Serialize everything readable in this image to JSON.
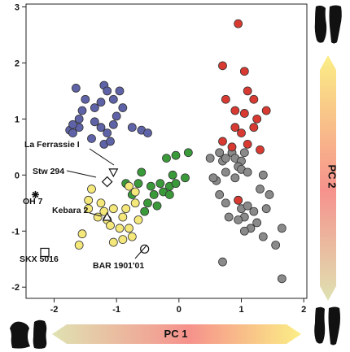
{
  "chart_data": {
    "type": "scatter",
    "xlabel": "PC 1",
    "ylabel": "PC 2",
    "xlim": [
      -2.45,
      2.05
    ],
    "ylim": [
      -2.2,
      3.05
    ],
    "xticks": [
      -2,
      -1,
      0,
      1,
      2
    ],
    "yticks": [
      -2,
      -1,
      0,
      1,
      2,
      3
    ],
    "grid": false,
    "colors": {
      "blue": "#5e62a6",
      "green": "#3a9a3a",
      "yellow": "#f5e87a",
      "gray": "#8a8a8a",
      "red": "#d83a32"
    },
    "series": [
      {
        "color_key": "blue",
        "points": [
          [
            -1.65,
            1.55
          ],
          [
            -1.5,
            1.35
          ],
          [
            -1.55,
            1.15
          ],
          [
            -1.35,
            1.2
          ],
          [
            -1.2,
            1.6
          ],
          [
            -1.15,
            1.5
          ],
          [
            -1.25,
            1.3
          ],
          [
            -1.05,
            1.35
          ],
          [
            -1.0,
            1.05
          ],
          [
            -0.95,
            1.5
          ],
          [
            -0.9,
            1.2
          ],
          [
            -1.35,
            0.95
          ],
          [
            -1.6,
            0.85
          ],
          [
            -1.75,
            0.8
          ],
          [
            -1.7,
            0.9
          ],
          [
            -1.6,
            1.0
          ],
          [
            -1.25,
            0.85
          ],
          [
            -1.15,
            0.75
          ],
          [
            -1.05,
            0.9
          ],
          [
            -0.75,
            0.85
          ],
          [
            -0.6,
            0.8
          ],
          [
            -0.5,
            0.75
          ],
          [
            -1.4,
            0.65
          ],
          [
            -1.2,
            0.55
          ],
          [
            -1.1,
            0.6
          ],
          [
            -1.7,
            0.75
          ]
        ]
      },
      {
        "color_key": "green",
        "points": [
          [
            -0.85,
            -0.15
          ],
          [
            -0.6,
            0.05
          ],
          [
            -0.45,
            -0.2
          ],
          [
            -0.4,
            -0.35
          ],
          [
            -0.5,
            -0.5
          ],
          [
            -0.55,
            -0.65
          ],
          [
            -0.35,
            -0.55
          ],
          [
            -0.3,
            -0.15
          ],
          [
            -0.25,
            -0.3
          ],
          [
            -0.15,
            -0.2
          ],
          [
            -0.1,
            0.0
          ],
          [
            -0.2,
            0.3
          ],
          [
            -0.05,
            0.35
          ],
          [
            0.1,
            -0.05
          ],
          [
            0.15,
            0.4
          ],
          [
            -0.65,
            -0.15
          ],
          [
            -0.75,
            -0.35
          ],
          [
            -0.15,
            -0.35
          ],
          [
            -0.05,
            -0.15
          ]
        ]
      },
      {
        "color_key": "yellow",
        "points": [
          [
            -1.3,
            -0.75
          ],
          [
            -1.25,
            -0.5
          ],
          [
            -1.2,
            -0.65
          ],
          [
            -1.15,
            -0.8
          ],
          [
            -1.05,
            -0.6
          ],
          [
            -1.1,
            -0.9
          ],
          [
            -0.95,
            -0.95
          ],
          [
            -0.9,
            -0.75
          ],
          [
            -0.85,
            -0.6
          ],
          [
            -0.8,
            -0.95
          ],
          [
            -0.75,
            -1.1
          ],
          [
            -0.7,
            -0.5
          ],
          [
            -0.9,
            -1.15
          ],
          [
            -0.65,
            -0.8
          ],
          [
            -0.7,
            -0.3
          ],
          [
            -0.8,
            -0.2
          ],
          [
            -1.05,
            -1.2
          ],
          [
            -1.6,
            -1.25
          ],
          [
            -1.55,
            -1.05
          ],
          [
            -1.45,
            -0.45
          ],
          [
            -1.4,
            -0.25
          ],
          [
            -1.45,
            -0.6
          ]
        ]
      },
      {
        "color_key": "gray",
        "points": [
          [
            0.5,
            0.3
          ],
          [
            0.65,
            0.4
          ],
          [
            0.7,
            0.25
          ],
          [
            0.75,
            0.3
          ],
          [
            0.85,
            0.4
          ],
          [
            0.9,
            0.3
          ],
          [
            1.0,
            0.25
          ],
          [
            1.05,
            0.4
          ],
          [
            0.95,
            0.15
          ],
          [
            0.75,
            0.05
          ],
          [
            0.6,
            -0.1
          ],
          [
            0.65,
            -0.35
          ],
          [
            0.75,
            -0.5
          ],
          [
            0.9,
            -0.05
          ],
          [
            0.95,
            -0.45
          ],
          [
            1.0,
            -0.6
          ],
          [
            1.05,
            -0.75
          ],
          [
            1.1,
            -0.55
          ],
          [
            1.15,
            -0.95
          ],
          [
            1.2,
            -0.65
          ],
          [
            1.25,
            -0.85
          ],
          [
            1.05,
            -1.0
          ],
          [
            0.95,
            -0.8
          ],
          [
            0.8,
            -0.75
          ],
          [
            1.35,
            -1.1
          ],
          [
            1.45,
            -0.35
          ],
          [
            1.3,
            -0.25
          ],
          [
            1.65,
            -0.95
          ],
          [
            1.55,
            -1.25
          ],
          [
            1.65,
            -1.85
          ],
          [
            0.7,
            -1.55
          ],
          [
            1.0,
            0.1
          ],
          [
            1.1,
            0.05
          ],
          [
            0.55,
            -0.05
          ],
          [
            1.4,
            -0.6
          ],
          [
            1.35,
            0.0
          ]
        ]
      },
      {
        "color_key": "red",
        "points": [
          [
            0.95,
            2.7
          ],
          [
            0.7,
            1.95
          ],
          [
            1.05,
            1.85
          ],
          [
            1.1,
            1.5
          ],
          [
            1.2,
            1.35
          ],
          [
            0.75,
            1.35
          ],
          [
            0.9,
            1.15
          ],
          [
            1.05,
            1.1
          ],
          [
            1.25,
            1.0
          ],
          [
            1.4,
            1.15
          ],
          [
            0.9,
            0.85
          ],
          [
            1.0,
            0.75
          ],
          [
            1.2,
            0.85
          ],
          [
            0.7,
            0.6
          ],
          [
            0.85,
            0.5
          ],
          [
            1.3,
            0.45
          ],
          [
            1.1,
            0.55
          ],
          [
            0.95,
            -0.45
          ]
        ]
      }
    ],
    "specimens": [
      {
        "label": "La Ferrassie I",
        "marker": "triangle-down",
        "x": -1.05,
        "y": 0.05
      },
      {
        "label": "Stw 294",
        "marker": "diamond",
        "x": -1.15,
        "y": -0.12
      },
      {
        "label": "OH 7",
        "marker": "asterisk",
        "x": -2.3,
        "y": -0.35
      },
      {
        "label": "Kebara 2",
        "marker": "triangle-up",
        "x": -1.15,
        "y": -0.75
      },
      {
        "label": "SKX 5016",
        "marker": "square",
        "x": -2.15,
        "y": -1.38
      },
      {
        "label": "BAR 1901'01",
        "marker": "circle-open",
        "x": -0.55,
        "y": -1.32
      }
    ]
  }
}
